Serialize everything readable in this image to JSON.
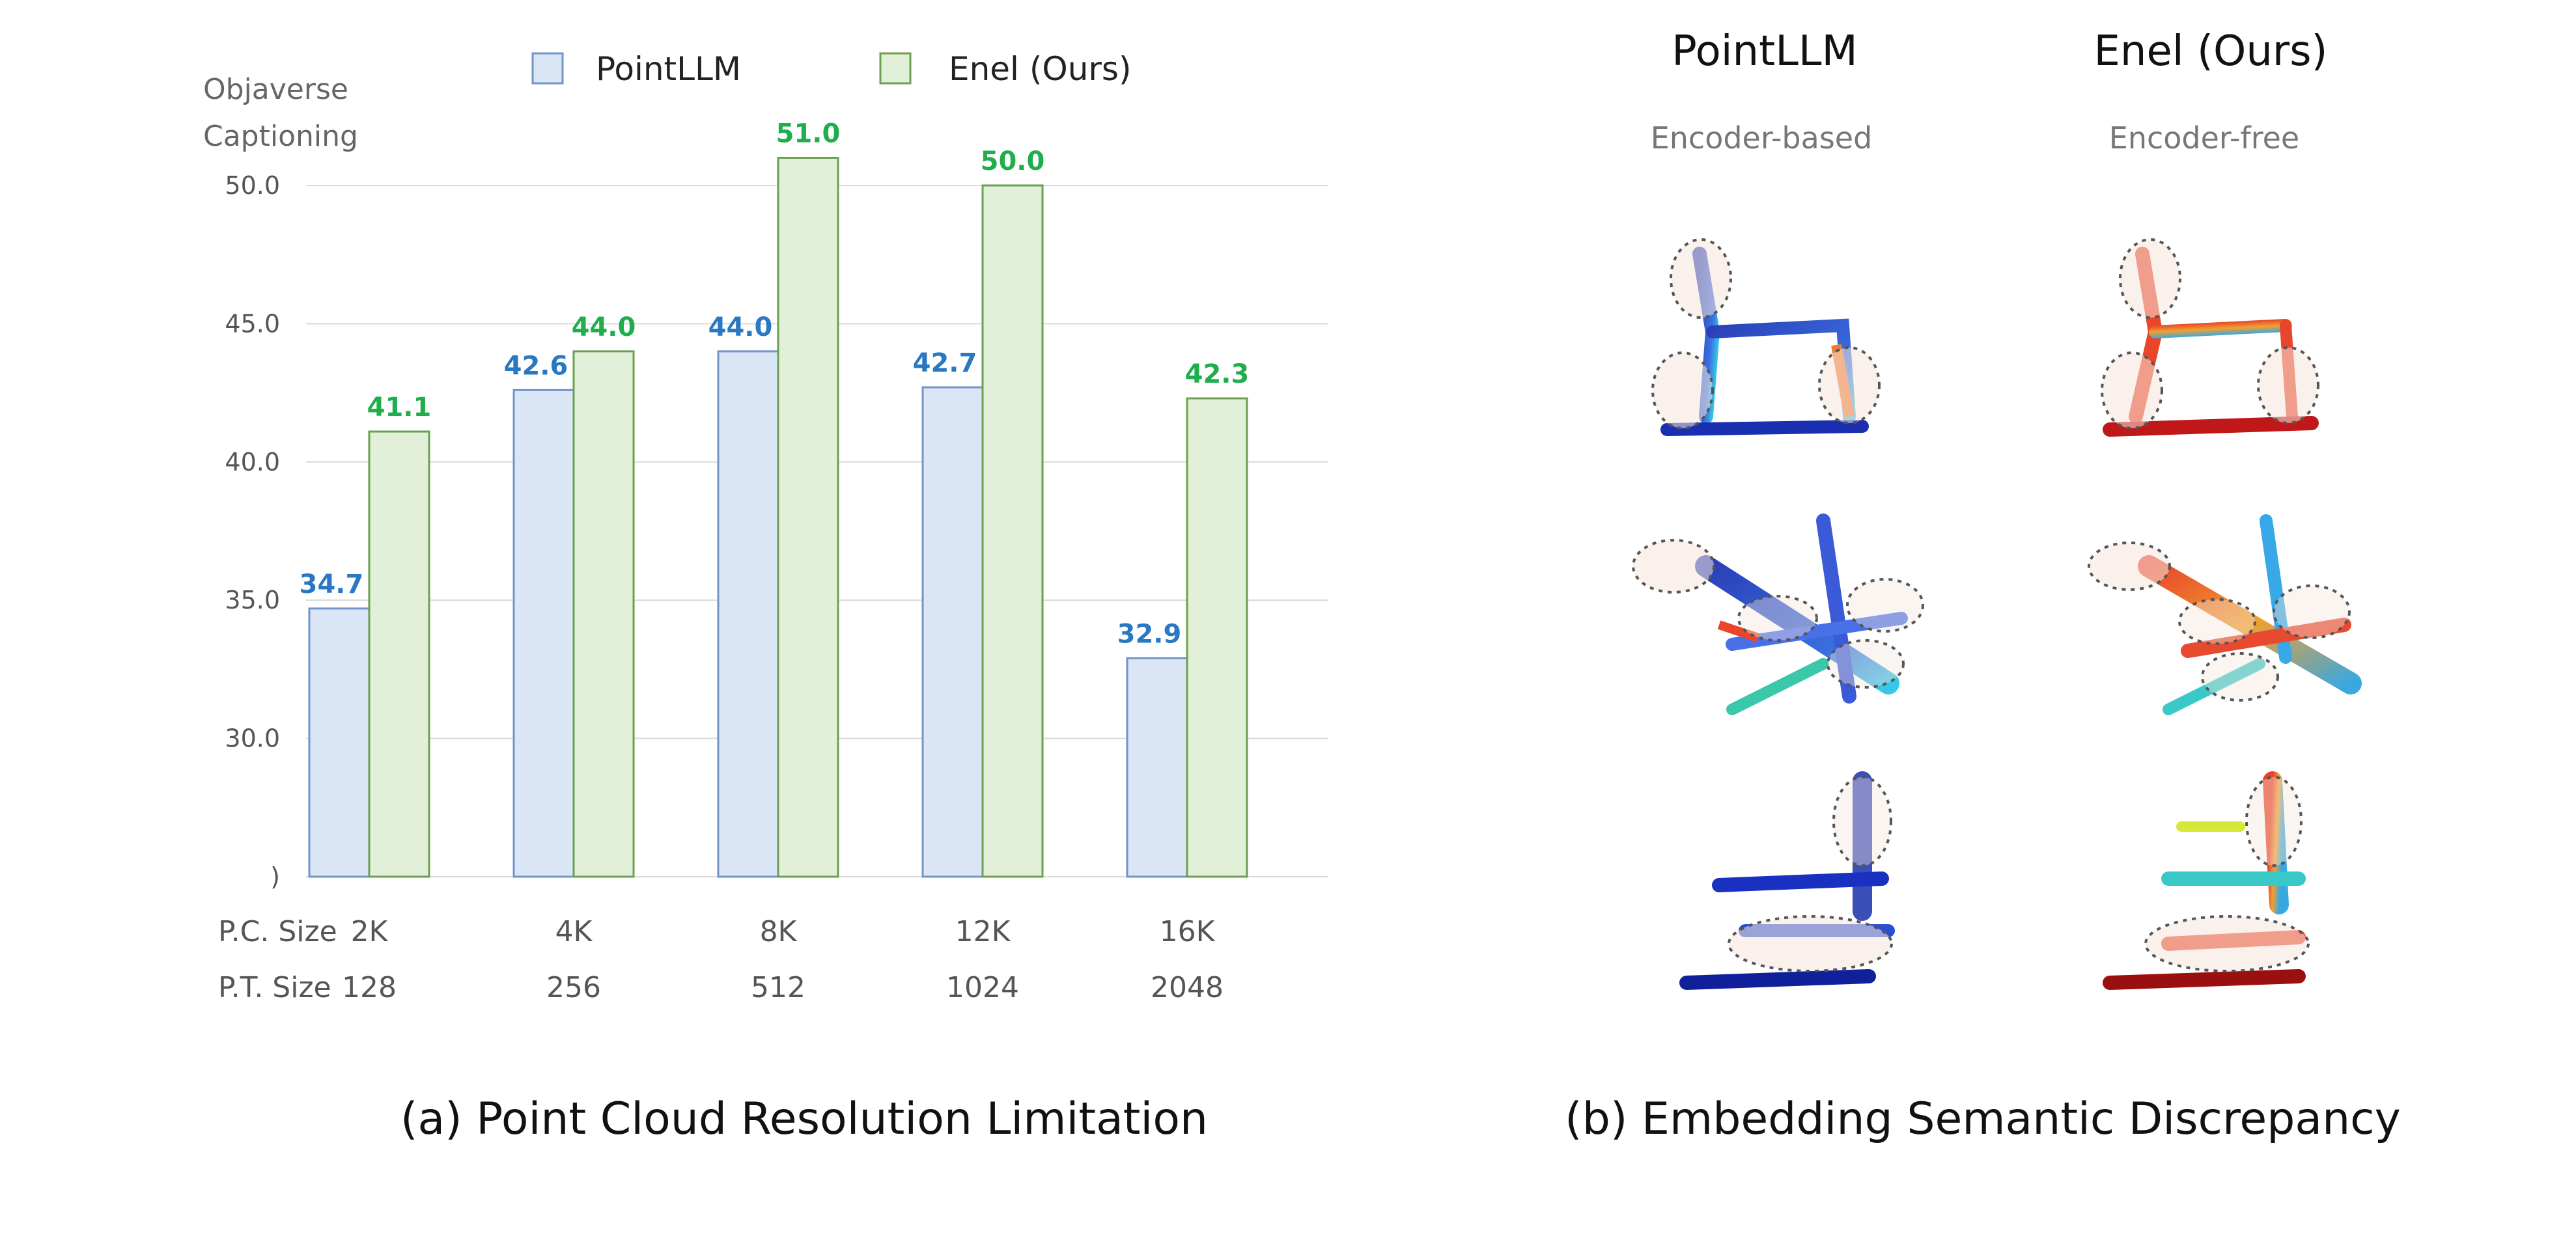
{
  "chart_data": {
    "type": "bar",
    "ylabel": [
      "Objaverse",
      "Captioning"
    ],
    "ylim": [
      25,
      52
    ],
    "yticks": [
      "50.0",
      "45.0",
      "40.0",
      "35.0",
      "30.0",
      ")"
    ],
    "ytick_values": [
      50,
      45,
      40,
      35,
      30,
      25
    ],
    "row_labels": [
      "P.C. Size",
      "P.T. Size"
    ],
    "categories": [
      "2K",
      "4K",
      "8K",
      "12K",
      "16K"
    ],
    "categories_secondary": [
      "128",
      "256",
      "512",
      "1024",
      "2048"
    ],
    "legend_position": "top",
    "series": [
      {
        "name": "PointLLM",
        "values": [
          34.7,
          42.6,
          44.0,
          42.7,
          32.9
        ],
        "labels": [
          "34.7",
          "42.6",
          "44.0",
          "42.7",
          "32.9"
        ],
        "fill": "#dae5f6",
        "stroke": "#6f95c9",
        "label_color": "#2a78c2"
      },
      {
        "name": "Enel (Ours)",
        "values": [
          41.1,
          44.0,
          51.0,
          50.0,
          42.3
        ],
        "labels": [
          "41.1",
          "44.0",
          "51.0",
          "50.0",
          "42.3"
        ],
        "fill": "#e2f0d9",
        "stroke": "#6aa050",
        "label_color": "#1fae4b"
      }
    ],
    "grid": true
  },
  "captions": {
    "a": "(a) Point Cloud Resolution Limitation",
    "b": "(b) Embedding Semantic Discrepancy"
  },
  "panel_b": {
    "columns": [
      {
        "title": "PointLLM",
        "subtitle": "Encoder-based"
      },
      {
        "title": "Enel (Ours)",
        "subtitle": "Encoder-free"
      }
    ],
    "icons": [
      "chair-pointcloud-icon",
      "airplane-pointcloud-icon",
      "chair-side-pointcloud-icon"
    ]
  }
}
